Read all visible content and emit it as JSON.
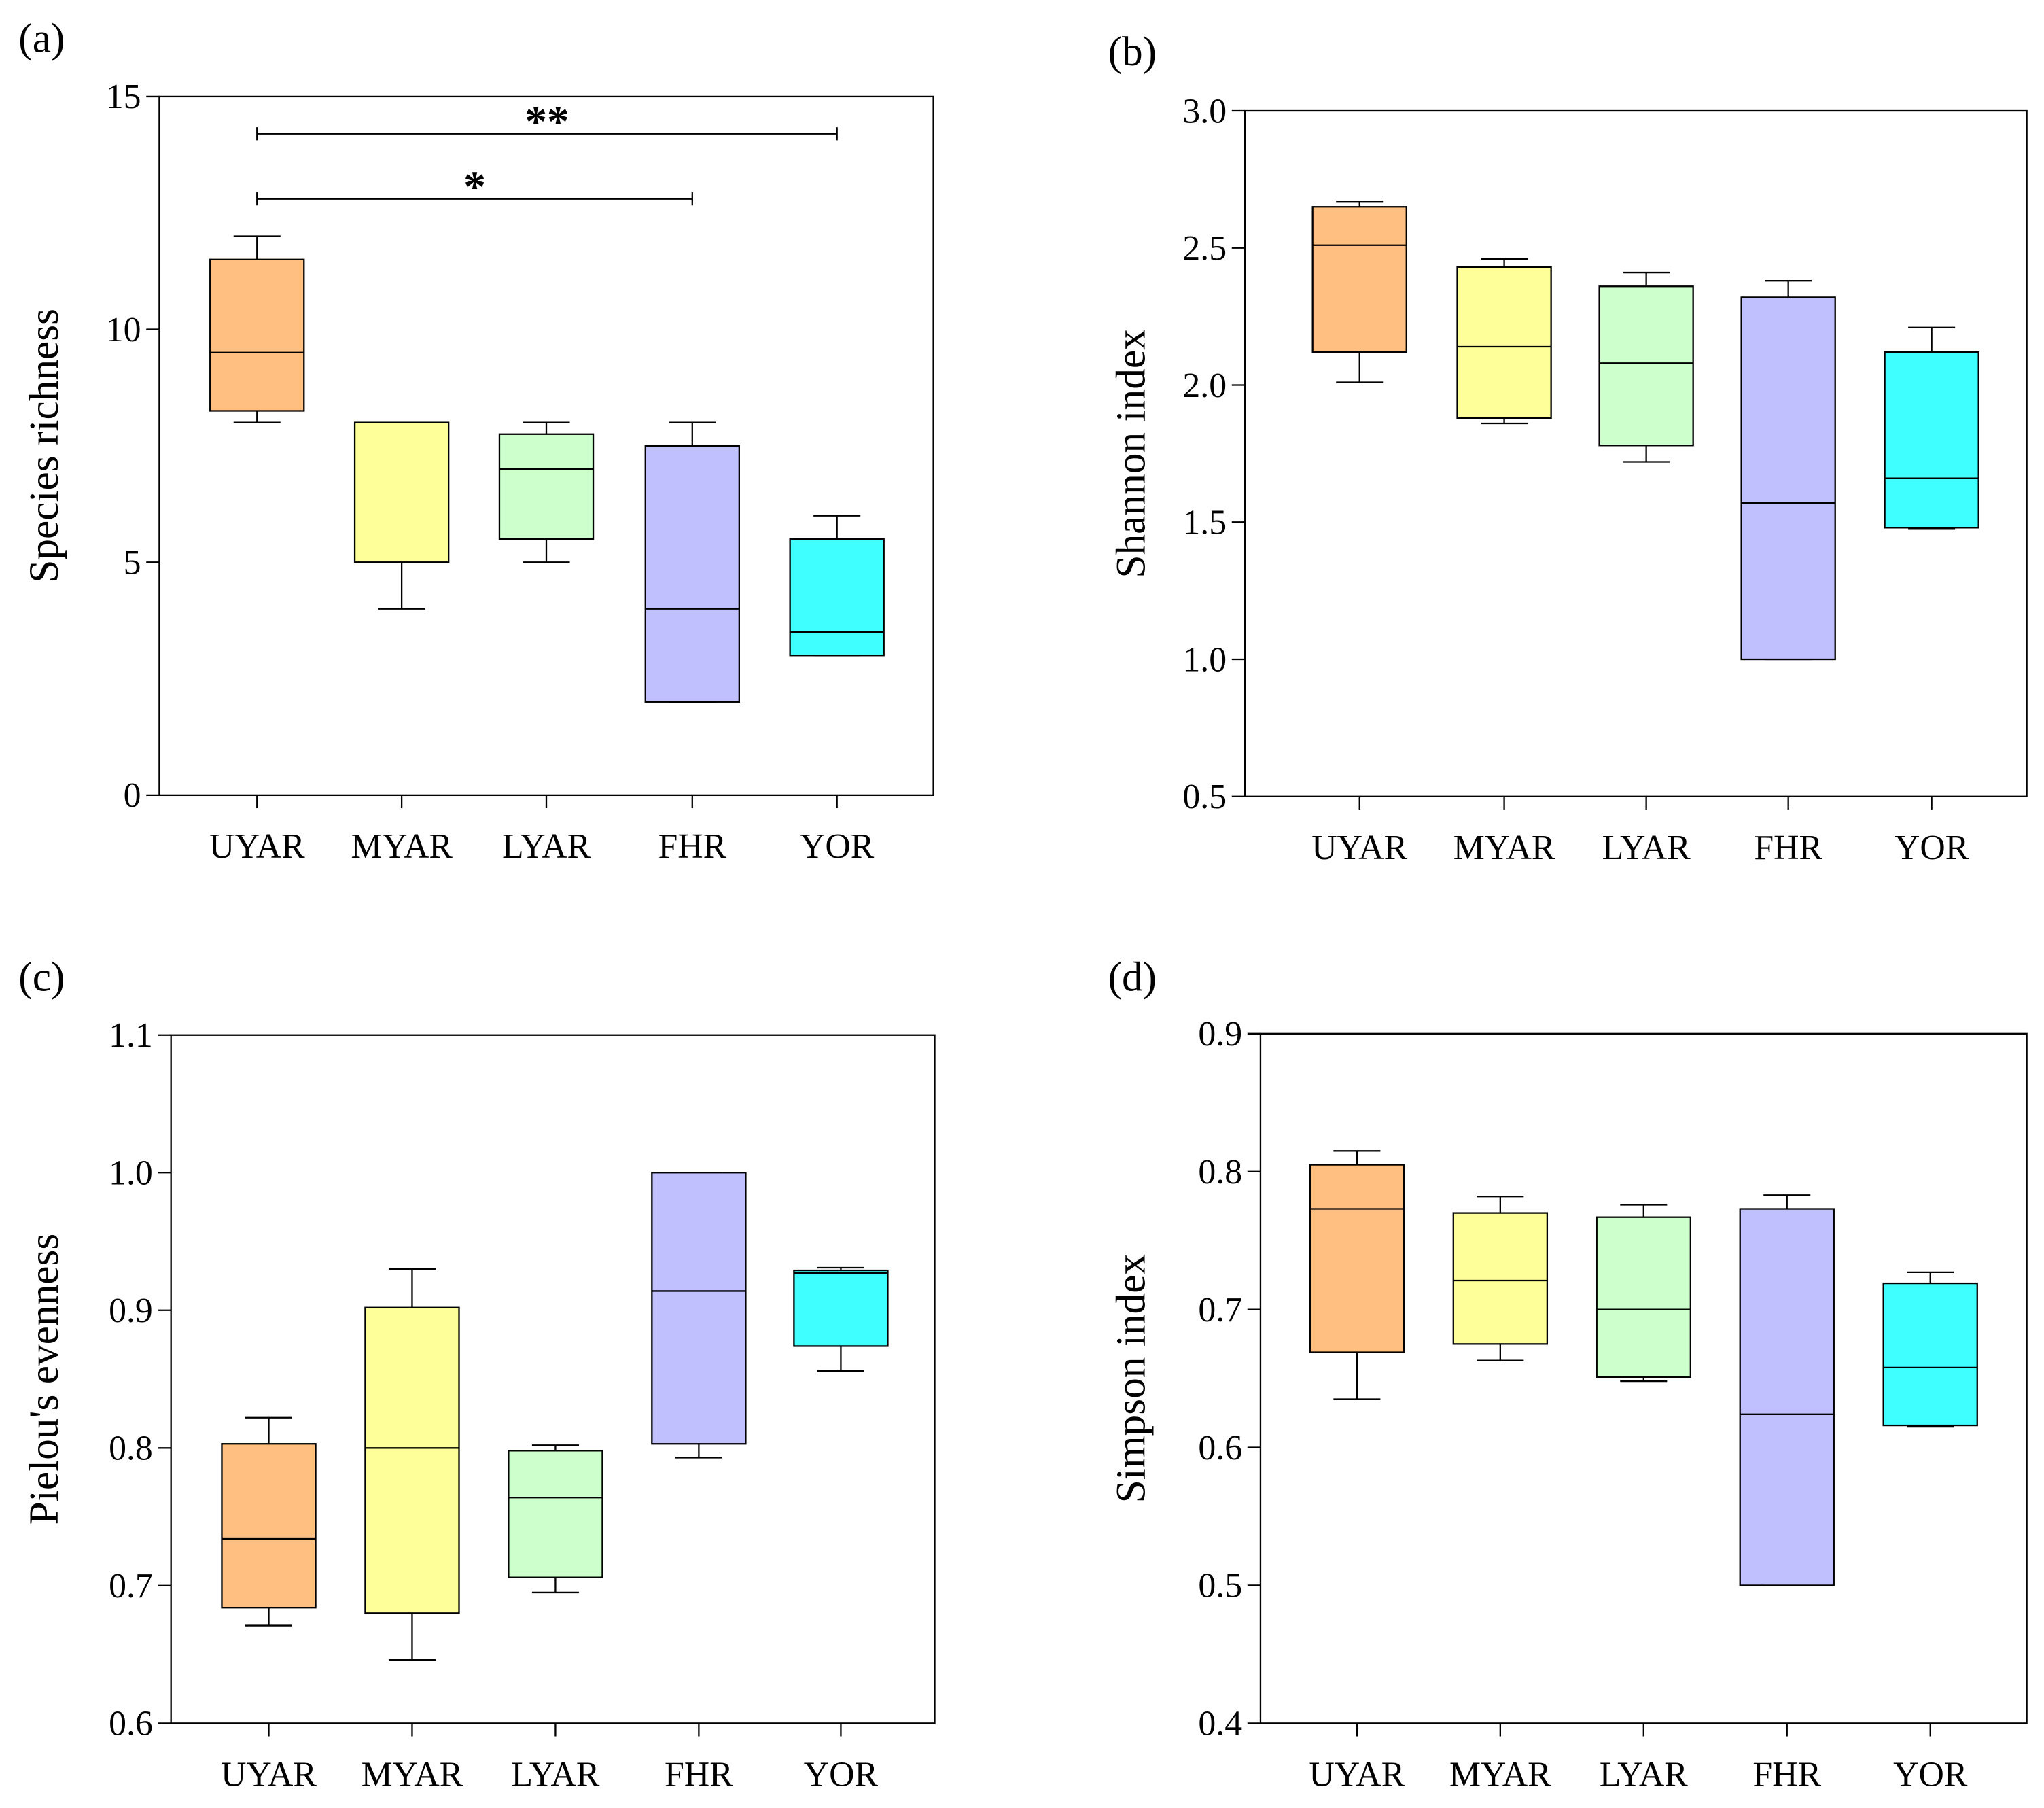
{
  "chart_data": [
    {
      "type": "box",
      "panel_label": "(a)",
      "ylabel": "Species richness",
      "categories": [
        "UYAR",
        "MYAR",
        "LYAR",
        "FHR",
        "YOR"
      ],
      "ylim": [
        0,
        15
      ],
      "yticks": [
        0,
        5,
        10,
        15
      ],
      "ytick_labels": [
        "0",
        "5",
        "10",
        "15"
      ],
      "boxes": [
        {
          "min": 8.0,
          "q1": 8.25,
          "median": 9.5,
          "q3": 11.5,
          "max": 12.0
        },
        {
          "min": 4.0,
          "q1": 5.0,
          "median": 8.0,
          "q3": 8.0,
          "max": 8.0
        },
        {
          "min": 5.0,
          "q1": 5.5,
          "median": 7.0,
          "q3": 7.75,
          "max": 8.0
        },
        {
          "min": 2.0,
          "q1": 2.0,
          "median": 4.0,
          "q3": 7.5,
          "max": 8.0
        },
        {
          "min": 3.0,
          "q1": 3.0,
          "median": 3.5,
          "q3": 5.5,
          "max": 6.0
        }
      ],
      "significance": [
        {
          "from": "UYAR",
          "to": "YOR",
          "label": "**",
          "y": 14.2
        },
        {
          "from": "UYAR",
          "to": "FHR",
          "label": "*",
          "y": 12.8
        }
      ]
    },
    {
      "type": "box",
      "panel_label": "(b)",
      "ylabel": "Shannon index",
      "categories": [
        "UYAR",
        "MYAR",
        "LYAR",
        "FHR",
        "YOR"
      ],
      "ylim": [
        0.5,
        3.0
      ],
      "yticks": [
        0.5,
        1.0,
        1.5,
        2.0,
        2.5,
        3.0
      ],
      "ytick_labels": [
        "0.5",
        "1.0",
        "1.5",
        "2.0",
        "2.5",
        "3.0"
      ],
      "boxes": [
        {
          "min": 2.01,
          "q1": 2.12,
          "median": 2.51,
          "q3": 2.65,
          "max": 2.67
        },
        {
          "min": 1.86,
          "q1": 1.88,
          "median": 2.14,
          "q3": 2.43,
          "max": 2.46
        },
        {
          "min": 1.72,
          "q1": 1.78,
          "median": 2.08,
          "q3": 2.36,
          "max": 2.41
        },
        {
          "min": 1.0,
          "q1": 1.0,
          "median": 1.57,
          "q3": 2.32,
          "max": 2.38
        },
        {
          "min": 1.475,
          "q1": 1.48,
          "median": 1.66,
          "q3": 2.12,
          "max": 2.21
        }
      ],
      "significance": []
    },
    {
      "type": "box",
      "panel_label": "(c)",
      "ylabel": "Pielou's evenness",
      "categories": [
        "UYAR",
        "MYAR",
        "LYAR",
        "FHR",
        "YOR"
      ],
      "ylim": [
        0.6,
        1.1
      ],
      "yticks": [
        0.6,
        0.7,
        0.8,
        0.9,
        1.0,
        1.1
      ],
      "ytick_labels": [
        "0.6",
        "0.7",
        "0.8",
        "0.9",
        "1.0",
        "1.1"
      ],
      "boxes": [
        {
          "min": 0.671,
          "q1": 0.684,
          "median": 0.734,
          "q3": 0.803,
          "max": 0.822
        },
        {
          "min": 0.646,
          "q1": 0.68,
          "median": 0.8,
          "q3": 0.902,
          "max": 0.93
        },
        {
          "min": 0.695,
          "q1": 0.706,
          "median": 0.764,
          "q3": 0.798,
          "max": 0.802
        },
        {
          "min": 0.793,
          "q1": 0.803,
          "median": 0.914,
          "q3": 1.0,
          "max": 1.0
        },
        {
          "min": 0.856,
          "q1": 0.874,
          "median": 0.927,
          "q3": 0.929,
          "max": 0.931
        }
      ],
      "significance": []
    },
    {
      "type": "box",
      "panel_label": "(d)",
      "ylabel": "Simpson index",
      "categories": [
        "UYAR",
        "MYAR",
        "LYAR",
        "FHR",
        "YOR"
      ],
      "ylim": [
        0.4,
        0.9
      ],
      "yticks": [
        0.4,
        0.5,
        0.6,
        0.7,
        0.8,
        0.9
      ],
      "ytick_labels": [
        "0.4",
        "0.5",
        "0.6",
        "0.7",
        "0.8",
        "0.9"
      ],
      "boxes": [
        {
          "min": 0.635,
          "q1": 0.669,
          "median": 0.773,
          "q3": 0.805,
          "max": 0.815
        },
        {
          "min": 0.663,
          "q1": 0.675,
          "median": 0.721,
          "q3": 0.77,
          "max": 0.782
        },
        {
          "min": 0.648,
          "q1": 0.651,
          "median": 0.7,
          "q3": 0.767,
          "max": 0.776
        },
        {
          "min": 0.5,
          "q1": 0.5,
          "median": 0.624,
          "q3": 0.773,
          "max": 0.783
        },
        {
          "min": 0.615,
          "q1": 0.616,
          "median": 0.658,
          "q3": 0.719,
          "max": 0.727
        }
      ],
      "significance": []
    }
  ],
  "colors": {
    "UYAR": "#FFBF80",
    "MYAR": "#FFFF99",
    "LYAR": "#CCFFCC",
    "FHR": "#C0C0FF",
    "YOR": "#40FFFF"
  }
}
